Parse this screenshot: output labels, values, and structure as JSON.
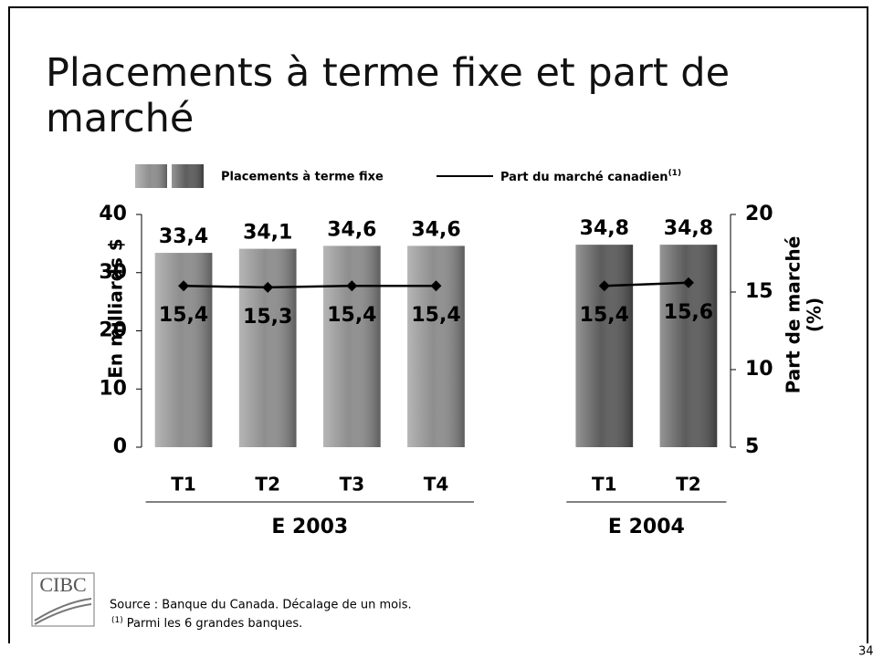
{
  "chart_data": {
    "type": "bar_line",
    "title": "Placements à terme fixe et part de marché",
    "categories": [
      "T1",
      "T2",
      "T3",
      "T4",
      null,
      "T1",
      "T2"
    ],
    "groups": [
      "E 2003",
      "E 2004"
    ],
    "series": [
      {
        "name": "Placements à terme fixe",
        "type": "bar",
        "colors": [
          "#8e8e8e",
          "#8e8e8e",
          "#8e8e8e",
          "#8e8e8e",
          null,
          "#5c5c5c",
          "#5c5c5c"
        ],
        "values": [
          33.4,
          34.1,
          34.6,
          34.6,
          null,
          34.8,
          34.8
        ],
        "value_labels": [
          "33,4",
          "34,1",
          "34,6",
          "34,6",
          null,
          "34,8",
          "34,8"
        ]
      },
      {
        "name": "Part du marché canadien",
        "name_note": "(1)",
        "type": "line",
        "axis": "y2",
        "color": "#000000",
        "values": [
          15.4,
          15.3,
          15.4,
          15.4,
          null,
          15.4,
          15.6
        ],
        "value_labels": [
          "15,4",
          "15,3",
          "15,4",
          "15,4",
          null,
          "15,4",
          "15,6"
        ]
      }
    ],
    "ylabel": "En milliards $",
    "y2label": [
      "Part de marché",
      "(%)"
    ],
    "ylim": [
      0,
      40
    ],
    "yticks": [
      0,
      10,
      20,
      30,
      40
    ],
    "y2lim": [
      5,
      20
    ],
    "y2ticks": [
      5,
      10,
      15,
      20
    ],
    "source": "Source :  Banque du Canada. Décalage de un mois.",
    "footnote": {
      "marker": "(1)",
      "text": "Parmi les 6 grandes banques."
    },
    "logo": "CIBC",
    "page_number": "34"
  }
}
